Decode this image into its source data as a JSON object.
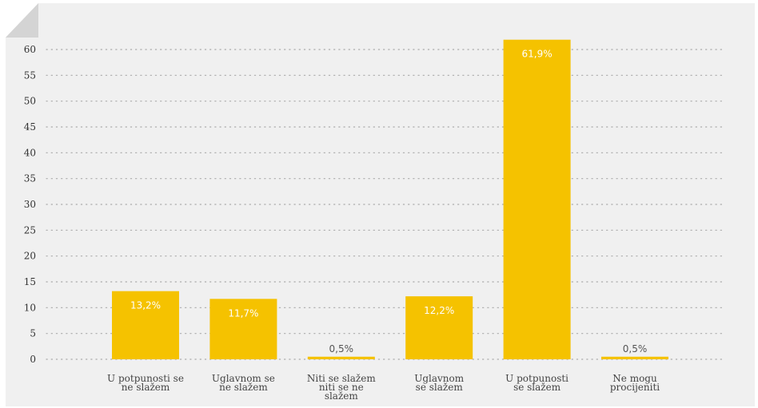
{
  "chart_data": {
    "type": "bar",
    "categories": [
      "U potpunosti se ne slažem",
      "Uglavnom se ne slažem",
      "Niti se slažem niti se ne slažem",
      "Uglavnom se slažem",
      "U potpunosti se slažem",
      "Ne mogu procijeniti"
    ],
    "category_lines": [
      [
        "U potpunosti se",
        "ne slažem"
      ],
      [
        "Uglavnom se",
        "ne slažem"
      ],
      [
        "Niti se slažem",
        "niti se ne",
        "slažem"
      ],
      [
        "Uglavnom",
        "se slažem"
      ],
      [
        "U potpunosti",
        "se slažem"
      ],
      [
        "Ne mogu",
        "procijeniti"
      ]
    ],
    "values": [
      13.2,
      11.7,
      0.5,
      12.2,
      61.9,
      0.5
    ],
    "value_labels": [
      "13,2%",
      "11,7%",
      "0,5%",
      "12,2%",
      "61,9%",
      "0,5%"
    ],
    "ylim": [
      0,
      60
    ],
    "yticks": [
      "0",
      "5",
      "10",
      "15",
      "20",
      "25",
      "30",
      "35",
      "40",
      "45",
      "50",
      "55",
      "60"
    ],
    "grid": true,
    "colors": {
      "bar": "#F5C200",
      "panel": "#F0F0F0",
      "corner": "#D4D4D4",
      "grid": "#AAAAAA",
      "label_inside": "#FFFFFF",
      "label_outside": "#555555"
    }
  }
}
